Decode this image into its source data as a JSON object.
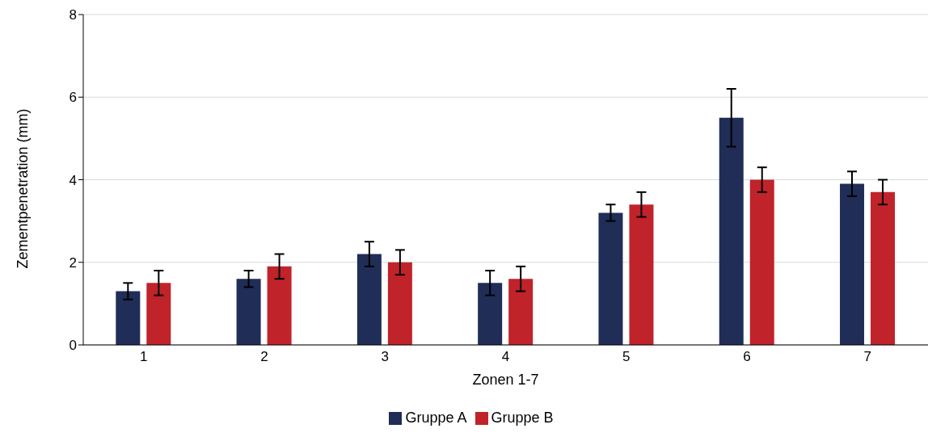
{
  "chart_data": {
    "type": "bar",
    "xlabel": "Zonen 1-7",
    "ylabel": "Zementpenetration (mm)",
    "categories": [
      "1",
      "2",
      "3",
      "4",
      "5",
      "6",
      "7"
    ],
    "series": [
      {
        "name": "Gruppe A",
        "color": "#1f2d57",
        "values": [
          1.3,
          1.6,
          2.2,
          1.5,
          3.2,
          5.5,
          3.9
        ],
        "errors": [
          0.2,
          0.2,
          0.3,
          0.3,
          0.2,
          0.7,
          0.3
        ]
      },
      {
        "name": "Gruppe B",
        "color": "#c0232a",
        "values": [
          1.5,
          1.9,
          2.0,
          1.6,
          3.4,
          4.0,
          3.7
        ],
        "errors": [
          0.3,
          0.3,
          0.3,
          0.3,
          0.3,
          0.3,
          0.3
        ]
      }
    ],
    "ylim": [
      0,
      8
    ],
    "yticks": [
      0,
      2,
      4,
      6,
      8
    ],
    "grid": "y",
    "legend": "bottom"
  }
}
